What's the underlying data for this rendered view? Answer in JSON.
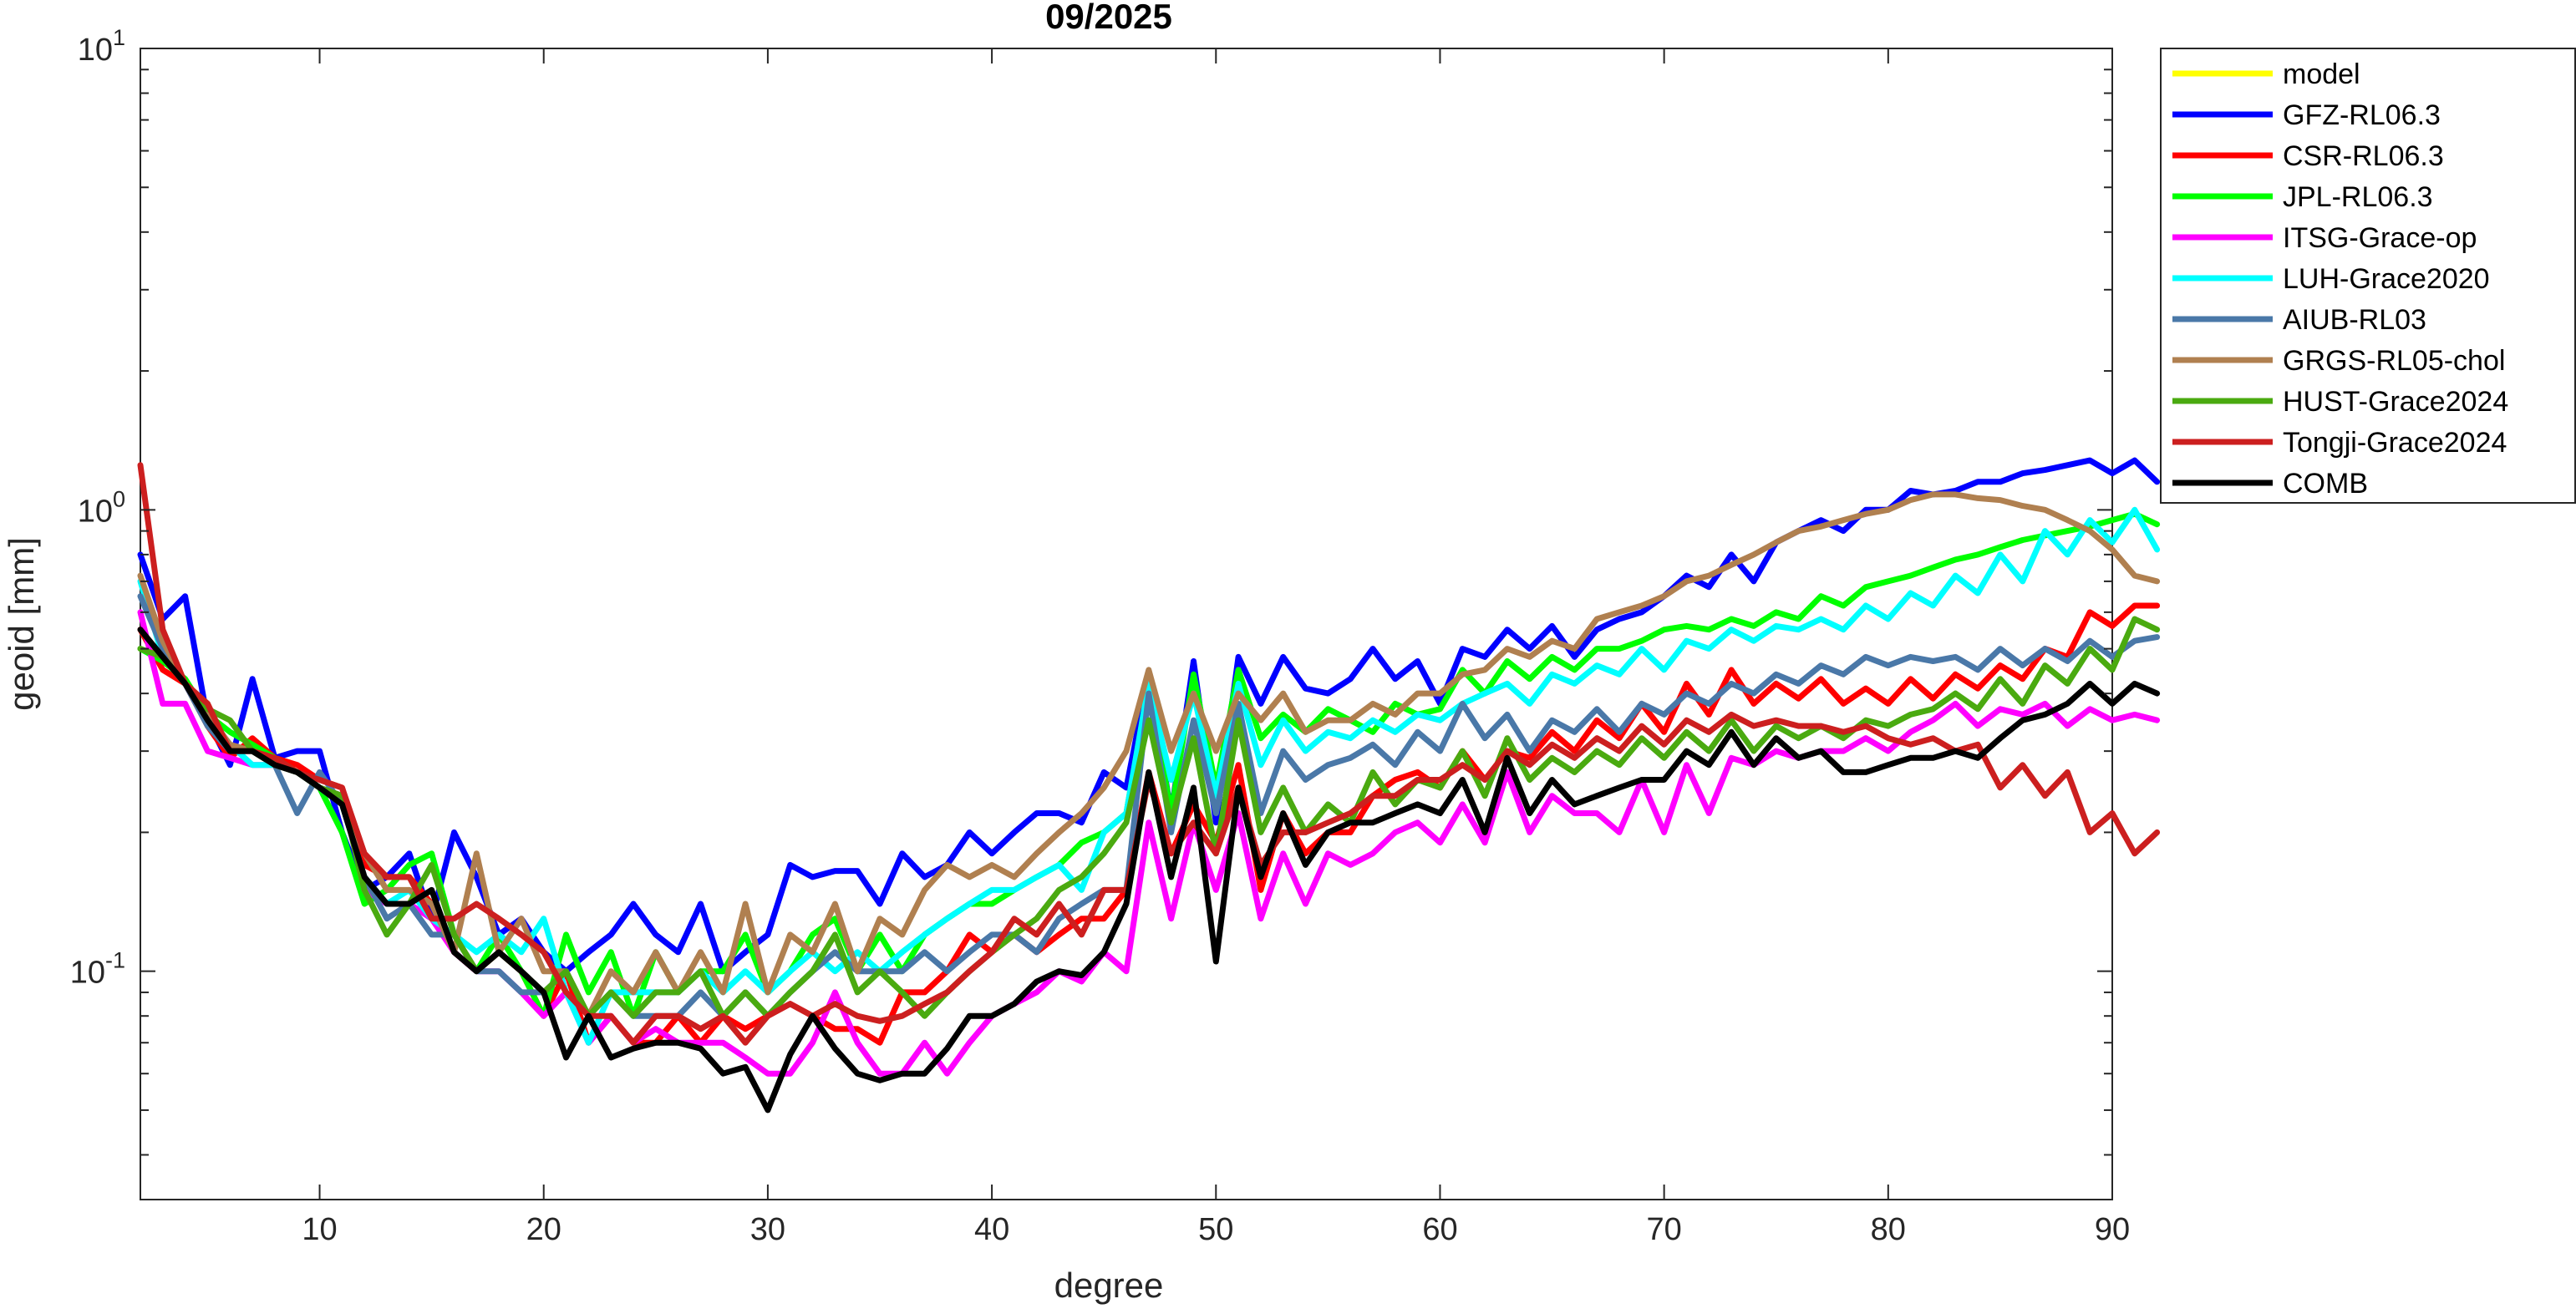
{
  "chart_data": {
    "type": "line",
    "title": "09/2025",
    "xlabel": "degree",
    "ylabel": "geoid [mm]",
    "xlim": [
      2,
      90
    ],
    "ylim": [
      0.032,
      10
    ],
    "yscale": "log",
    "grid": false,
    "legend_position": "outside-top-right",
    "x_ticks": [
      10,
      20,
      30,
      40,
      50,
      60,
      70,
      80,
      90
    ],
    "y_ticks": [
      {
        "value": 0.1,
        "base": "10",
        "exp": "-1"
      },
      {
        "value": 1,
        "base": "10",
        "exp": "0"
      },
      {
        "value": 10,
        "base": "10",
        "exp": "1"
      }
    ],
    "x_start": 2,
    "series": [
      {
        "name": "model",
        "color": "#ffff00",
        "values": []
      },
      {
        "name": "GFZ-RL06.3",
        "color": "#0000ff",
        "values": [
          0.8,
          0.58,
          0.65,
          0.35,
          0.28,
          0.43,
          0.29,
          0.3,
          0.3,
          0.2,
          0.15,
          0.16,
          0.18,
          0.13,
          0.2,
          0.16,
          0.12,
          0.13,
          0.11,
          0.1,
          0.11,
          0.12,
          0.14,
          0.12,
          0.11,
          0.14,
          0.1,
          0.11,
          0.12,
          0.17,
          0.16,
          0.165,
          0.165,
          0.14,
          0.18,
          0.16,
          0.17,
          0.2,
          0.18,
          0.2,
          0.22,
          0.22,
          0.21,
          0.27,
          0.25,
          0.44,
          0.22,
          0.47,
          0.21,
          0.48,
          0.38,
          0.48,
          0.41,
          0.4,
          0.43,
          0.5,
          0.43,
          0.47,
          0.38,
          0.5,
          0.48,
          0.55,
          0.5,
          0.56,
          0.48,
          0.55,
          0.58,
          0.6,
          0.65,
          0.72,
          0.68,
          0.8,
          0.7,
          0.85,
          0.9,
          0.95,
          0.9,
          1.0,
          1.0,
          1.1,
          1.08,
          1.1,
          1.15,
          1.15,
          1.2,
          1.22,
          1.25,
          1.28,
          1.2,
          1.28,
          1.15
        ]
      },
      {
        "name": "CSR-RL06.3",
        "color": "#ff0000",
        "values": [
          0.55,
          0.45,
          0.42,
          0.34,
          0.29,
          0.32,
          0.29,
          0.28,
          0.26,
          0.25,
          0.17,
          0.16,
          0.16,
          0.14,
          0.11,
          0.1,
          0.11,
          0.1,
          0.08,
          0.1,
          0.07,
          0.08,
          0.07,
          0.07,
          0.08,
          0.07,
          0.08,
          0.075,
          0.08,
          0.085,
          0.08,
          0.075,
          0.075,
          0.07,
          0.09,
          0.09,
          0.1,
          0.12,
          0.11,
          0.12,
          0.11,
          0.12,
          0.13,
          0.13,
          0.15,
          0.27,
          0.18,
          0.23,
          0.19,
          0.28,
          0.15,
          0.22,
          0.18,
          0.2,
          0.2,
          0.24,
          0.26,
          0.27,
          0.25,
          0.3,
          0.26,
          0.3,
          0.29,
          0.33,
          0.3,
          0.35,
          0.32,
          0.38,
          0.33,
          0.42,
          0.36,
          0.45,
          0.38,
          0.42,
          0.39,
          0.43,
          0.38,
          0.41,
          0.38,
          0.43,
          0.39,
          0.44,
          0.41,
          0.46,
          0.43,
          0.5,
          0.48,
          0.6,
          0.56,
          0.62,
          0.62
        ]
      },
      {
        "name": "JPL-RL06.3",
        "color": "#00ff00",
        "values": [
          0.5,
          0.47,
          0.43,
          0.36,
          0.33,
          0.31,
          0.29,
          0.27,
          0.25,
          0.2,
          0.14,
          0.15,
          0.17,
          0.18,
          0.12,
          0.1,
          0.12,
          0.1,
          0.08,
          0.12,
          0.09,
          0.11,
          0.08,
          0.11,
          0.09,
          0.1,
          0.1,
          0.12,
          0.09,
          0.1,
          0.12,
          0.13,
          0.1,
          0.12,
          0.1,
          0.12,
          0.13,
          0.14,
          0.14,
          0.15,
          0.16,
          0.17,
          0.19,
          0.2,
          0.22,
          0.42,
          0.22,
          0.44,
          0.25,
          0.45,
          0.32,
          0.36,
          0.33,
          0.37,
          0.35,
          0.33,
          0.38,
          0.36,
          0.37,
          0.45,
          0.4,
          0.47,
          0.43,
          0.48,
          0.45,
          0.5,
          0.5,
          0.52,
          0.55,
          0.56,
          0.55,
          0.58,
          0.56,
          0.6,
          0.58,
          0.65,
          0.62,
          0.68,
          0.7,
          0.72,
          0.75,
          0.78,
          0.8,
          0.83,
          0.86,
          0.88,
          0.9,
          0.92,
          0.95,
          0.98,
          0.93
        ]
      },
      {
        "name": "ITSG-Grace-op",
        "color": "#ff00ff",
        "values": [
          0.6,
          0.38,
          0.38,
          0.3,
          0.29,
          0.28,
          0.28,
          0.27,
          0.25,
          0.24,
          0.15,
          0.14,
          0.14,
          0.13,
          0.11,
          0.1,
          0.1,
          0.09,
          0.08,
          0.09,
          0.07,
          0.08,
          0.07,
          0.075,
          0.07,
          0.07,
          0.07,
          0.065,
          0.06,
          0.06,
          0.07,
          0.09,
          0.07,
          0.06,
          0.06,
          0.07,
          0.06,
          0.07,
          0.08,
          0.085,
          0.09,
          0.1,
          0.095,
          0.11,
          0.1,
          0.21,
          0.13,
          0.21,
          0.15,
          0.22,
          0.13,
          0.18,
          0.14,
          0.18,
          0.17,
          0.18,
          0.2,
          0.21,
          0.19,
          0.23,
          0.19,
          0.27,
          0.2,
          0.24,
          0.22,
          0.22,
          0.2,
          0.26,
          0.2,
          0.28,
          0.22,
          0.29,
          0.28,
          0.3,
          0.29,
          0.3,
          0.3,
          0.32,
          0.3,
          0.33,
          0.35,
          0.38,
          0.34,
          0.37,
          0.36,
          0.38,
          0.34,
          0.37,
          0.35,
          0.36,
          0.35
        ]
      },
      {
        "name": "LUH-Grace2020",
        "color": "#00ffff",
        "values": [
          0.7,
          0.48,
          0.42,
          0.36,
          0.31,
          0.28,
          0.28,
          0.27,
          0.25,
          0.23,
          0.16,
          0.14,
          0.15,
          0.13,
          0.12,
          0.11,
          0.12,
          0.11,
          0.13,
          0.09,
          0.07,
          0.09,
          0.09,
          0.09,
          0.09,
          0.1,
          0.09,
          0.1,
          0.09,
          0.1,
          0.11,
          0.1,
          0.11,
          0.1,
          0.11,
          0.12,
          0.13,
          0.14,
          0.15,
          0.15,
          0.16,
          0.17,
          0.15,
          0.2,
          0.22,
          0.42,
          0.26,
          0.4,
          0.24,
          0.42,
          0.28,
          0.35,
          0.3,
          0.33,
          0.32,
          0.35,
          0.33,
          0.36,
          0.35,
          0.38,
          0.4,
          0.42,
          0.38,
          0.44,
          0.42,
          0.46,
          0.44,
          0.5,
          0.45,
          0.52,
          0.5,
          0.55,
          0.52,
          0.56,
          0.55,
          0.58,
          0.55,
          0.62,
          0.58,
          0.66,
          0.62,
          0.72,
          0.66,
          0.8,
          0.7,
          0.9,
          0.8,
          0.95,
          0.85,
          1.0,
          0.82
        ]
      },
      {
        "name": "AIUB-RL03",
        "color": "#4a78a8",
        "values": [
          0.65,
          0.5,
          0.42,
          0.34,
          0.3,
          0.3,
          0.28,
          0.22,
          0.27,
          0.23,
          0.16,
          0.13,
          0.14,
          0.12,
          0.12,
          0.1,
          0.1,
          0.09,
          0.09,
          0.1,
          0.08,
          0.09,
          0.08,
          0.08,
          0.08,
          0.09,
          0.08,
          0.09,
          0.08,
          0.09,
          0.1,
          0.11,
          0.1,
          0.1,
          0.1,
          0.11,
          0.1,
          0.11,
          0.12,
          0.12,
          0.11,
          0.13,
          0.14,
          0.15,
          0.15,
          0.4,
          0.2,
          0.35,
          0.22,
          0.38,
          0.22,
          0.3,
          0.26,
          0.28,
          0.29,
          0.31,
          0.28,
          0.33,
          0.3,
          0.38,
          0.32,
          0.36,
          0.3,
          0.35,
          0.33,
          0.37,
          0.33,
          0.38,
          0.36,
          0.4,
          0.38,
          0.42,
          0.4,
          0.44,
          0.42,
          0.46,
          0.44,
          0.48,
          0.46,
          0.48,
          0.47,
          0.48,
          0.45,
          0.5,
          0.46,
          0.5,
          0.47,
          0.52,
          0.48,
          0.52,
          0.53
        ]
      },
      {
        "name": "GRGS-RL05-chol",
        "color": "#b08050",
        "values": [
          0.72,
          0.52,
          0.42,
          0.36,
          0.31,
          0.3,
          0.28,
          0.27,
          0.25,
          0.24,
          0.18,
          0.15,
          0.15,
          0.14,
          0.11,
          0.18,
          0.11,
          0.13,
          0.1,
          0.1,
          0.08,
          0.1,
          0.09,
          0.11,
          0.09,
          0.11,
          0.09,
          0.14,
          0.09,
          0.12,
          0.11,
          0.14,
          0.1,
          0.13,
          0.12,
          0.15,
          0.17,
          0.16,
          0.17,
          0.16,
          0.18,
          0.2,
          0.22,
          0.25,
          0.3,
          0.45,
          0.3,
          0.4,
          0.3,
          0.4,
          0.35,
          0.4,
          0.33,
          0.35,
          0.35,
          0.38,
          0.36,
          0.4,
          0.4,
          0.44,
          0.45,
          0.5,
          0.48,
          0.52,
          0.5,
          0.58,
          0.6,
          0.62,
          0.65,
          0.7,
          0.72,
          0.76,
          0.8,
          0.85,
          0.9,
          0.92,
          0.95,
          0.98,
          1.0,
          1.05,
          1.08,
          1.08,
          1.06,
          1.05,
          1.02,
          1.0,
          0.95,
          0.9,
          0.82,
          0.72,
          0.7
        ]
      },
      {
        "name": "HUST-Grace2024",
        "color": "#4aaa10",
        "values": [
          0.5,
          0.48,
          0.42,
          0.37,
          0.35,
          0.3,
          0.28,
          0.27,
          0.25,
          0.24,
          0.15,
          0.12,
          0.14,
          0.17,
          0.12,
          0.1,
          0.11,
          0.1,
          0.09,
          0.1,
          0.08,
          0.09,
          0.08,
          0.09,
          0.09,
          0.1,
          0.08,
          0.09,
          0.08,
          0.09,
          0.1,
          0.12,
          0.09,
          0.1,
          0.09,
          0.08,
          0.09,
          0.1,
          0.11,
          0.12,
          0.13,
          0.15,
          0.16,
          0.18,
          0.21,
          0.35,
          0.21,
          0.32,
          0.18,
          0.35,
          0.2,
          0.25,
          0.2,
          0.23,
          0.21,
          0.27,
          0.23,
          0.26,
          0.25,
          0.3,
          0.24,
          0.32,
          0.26,
          0.29,
          0.27,
          0.3,
          0.28,
          0.32,
          0.29,
          0.33,
          0.3,
          0.35,
          0.3,
          0.34,
          0.32,
          0.34,
          0.32,
          0.35,
          0.34,
          0.36,
          0.37,
          0.4,
          0.37,
          0.43,
          0.38,
          0.46,
          0.42,
          0.5,
          0.45,
          0.58,
          0.55
        ]
      },
      {
        "name": "Tongji-Grace2024",
        "color": "#cc1f1f",
        "values": [
          1.25,
          0.55,
          0.42,
          0.38,
          0.3,
          0.3,
          0.29,
          0.27,
          0.26,
          0.25,
          0.18,
          0.16,
          0.16,
          0.13,
          0.13,
          0.14,
          0.13,
          0.12,
          0.11,
          0.09,
          0.08,
          0.08,
          0.07,
          0.08,
          0.08,
          0.075,
          0.08,
          0.07,
          0.08,
          0.085,
          0.08,
          0.085,
          0.08,
          0.078,
          0.08,
          0.085,
          0.09,
          0.1,
          0.11,
          0.13,
          0.12,
          0.14,
          0.12,
          0.15,
          0.15,
          0.26,
          0.18,
          0.21,
          0.18,
          0.25,
          0.17,
          0.2,
          0.2,
          0.21,
          0.22,
          0.24,
          0.24,
          0.26,
          0.26,
          0.28,
          0.26,
          0.3,
          0.28,
          0.31,
          0.29,
          0.32,
          0.3,
          0.34,
          0.31,
          0.35,
          0.33,
          0.36,
          0.34,
          0.35,
          0.34,
          0.34,
          0.33,
          0.34,
          0.32,
          0.31,
          0.32,
          0.3,
          0.31,
          0.25,
          0.28,
          0.24,
          0.27,
          0.2,
          0.22,
          0.18,
          0.2
        ]
      },
      {
        "name": "COMB",
        "color": "#000000",
        "values": [
          0.55,
          0.48,
          0.42,
          0.35,
          0.3,
          0.3,
          0.28,
          0.27,
          0.25,
          0.23,
          0.16,
          0.14,
          0.14,
          0.15,
          0.11,
          0.1,
          0.11,
          0.1,
          0.09,
          0.065,
          0.08,
          0.065,
          0.068,
          0.07,
          0.07,
          0.068,
          0.06,
          0.062,
          0.05,
          0.066,
          0.08,
          0.068,
          0.06,
          0.058,
          0.06,
          0.06,
          0.068,
          0.08,
          0.08,
          0.085,
          0.095,
          0.1,
          0.098,
          0.11,
          0.14,
          0.27,
          0.16,
          0.25,
          0.105,
          0.25,
          0.16,
          0.22,
          0.17,
          0.2,
          0.21,
          0.21,
          0.22,
          0.23,
          0.22,
          0.26,
          0.2,
          0.29,
          0.22,
          0.26,
          0.23,
          0.24,
          0.25,
          0.26,
          0.26,
          0.3,
          0.28,
          0.33,
          0.28,
          0.32,
          0.29,
          0.3,
          0.27,
          0.27,
          0.28,
          0.29,
          0.29,
          0.3,
          0.29,
          0.32,
          0.35,
          0.36,
          0.38,
          0.42,
          0.38,
          0.42,
          0.4
        ]
      }
    ]
  }
}
